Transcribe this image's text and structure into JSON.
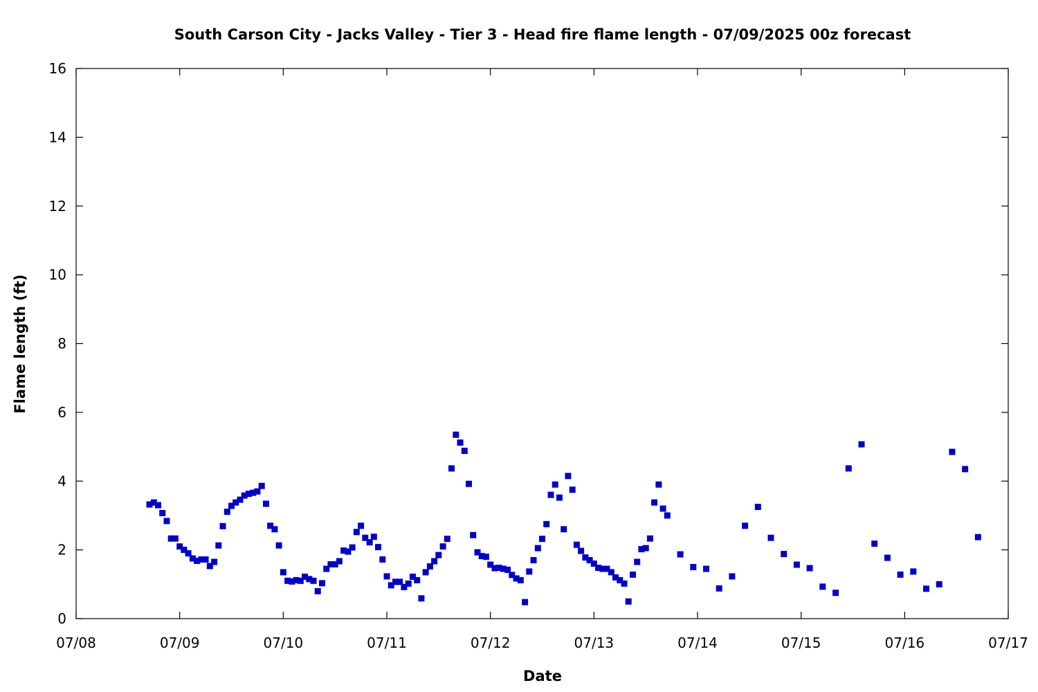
{
  "chart_data": {
    "type": "scatter",
    "title": "South Carson City - Jacks Valley - Tier 3 - Head fire flame length - 07/09/2025 00z forecast",
    "xlabel": "Date",
    "ylabel": "Flame length (ft)",
    "xlim": [
      "07/08 00:00",
      "07/17 00:00"
    ],
    "ylim": [
      0,
      16
    ],
    "x_tick_labels": [
      "07/08",
      "07/09",
      "07/10",
      "07/11",
      "07/12",
      "07/13",
      "07/14",
      "07/15",
      "07/16",
      "07/17"
    ],
    "y_ticks": [
      0,
      2,
      4,
      6,
      8,
      10,
      12,
      14,
      16
    ],
    "grid": false,
    "legend": "none",
    "marker": "square",
    "marker_color": "#0000cc",
    "series": [
      {
        "x": [
          "07/08 17:00",
          "07/08 18:00",
          "07/08 19:00",
          "07/08 20:00",
          "07/08 21:00",
          "07/08 22:00",
          "07/08 23:00",
          "07/09 00:00",
          "07/09 01:00",
          "07/09 02:00",
          "07/09 03:00",
          "07/09 04:00",
          "07/09 05:00",
          "07/09 06:00",
          "07/09 07:00",
          "07/09 08:00",
          "07/09 09:00",
          "07/09 10:00",
          "07/09 11:00",
          "07/09 12:00",
          "07/09 13:00",
          "07/09 14:00",
          "07/09 15:00",
          "07/09 16:00",
          "07/09 17:00",
          "07/09 18:00",
          "07/09 19:00",
          "07/09 20:00",
          "07/09 21:00",
          "07/09 22:00",
          "07/09 23:00",
          "07/10 00:00",
          "07/10 01:00",
          "07/10 02:00",
          "07/10 03:00",
          "07/10 04:00",
          "07/10 05:00",
          "07/10 06:00",
          "07/10 07:00",
          "07/10 08:00",
          "07/10 09:00",
          "07/10 10:00",
          "07/10 11:00",
          "07/10 12:00",
          "07/10 13:00",
          "07/10 14:00",
          "07/10 15:00",
          "07/10 16:00",
          "07/10 17:00",
          "07/10 18:00",
          "07/10 19:00",
          "07/10 20:00",
          "07/10 21:00",
          "07/10 22:00",
          "07/10 23:00",
          "07/11 00:00",
          "07/11 01:00",
          "07/11 02:00",
          "07/11 03:00",
          "07/11 04:00",
          "07/11 05:00",
          "07/11 06:00",
          "07/11 07:00",
          "07/11 08:00",
          "07/11 09:00",
          "07/11 10:00",
          "07/11 11:00",
          "07/11 12:00",
          "07/11 13:00",
          "07/11 14:00",
          "07/11 15:00",
          "07/11 16:00",
          "07/11 17:00",
          "07/11 18:00",
          "07/11 19:00",
          "07/11 20:00",
          "07/11 21:00",
          "07/11 22:00",
          "07/11 23:00",
          "07/12 00:00",
          "07/12 01:00",
          "07/12 02:00",
          "07/12 03:00",
          "07/12 04:00",
          "07/12 05:00",
          "07/12 06:00",
          "07/12 07:00",
          "07/12 08:00",
          "07/12 09:00",
          "07/12 10:00",
          "07/12 11:00",
          "07/12 12:00",
          "07/12 13:00",
          "07/12 14:00",
          "07/12 15:00",
          "07/12 16:00",
          "07/12 17:00",
          "07/12 18:00",
          "07/12 19:00",
          "07/12 20:00",
          "07/12 21:00",
          "07/12 22:00",
          "07/12 23:00",
          "07/13 00:00",
          "07/13 01:00",
          "07/13 02:00",
          "07/13 03:00",
          "07/13 04:00",
          "07/13 05:00",
          "07/13 06:00",
          "07/13 07:00",
          "07/13 08:00",
          "07/13 09:00",
          "07/13 10:00",
          "07/13 11:00",
          "07/13 12:00",
          "07/13 13:00",
          "07/13 14:00",
          "07/13 15:00",
          "07/13 16:00",
          "07/13 17:00",
          "07/13 20:00",
          "07/13 23:00",
          "07/14 02:00",
          "07/14 05:00",
          "07/14 08:00",
          "07/14 11:00",
          "07/14 14:00",
          "07/14 17:00",
          "07/14 20:00",
          "07/14 23:00",
          "07/15 02:00",
          "07/15 05:00",
          "07/15 08:00",
          "07/15 11:00",
          "07/15 14:00",
          "07/15 17:00",
          "07/15 20:00",
          "07/15 23:00",
          "07/16 02:00",
          "07/16 05:00",
          "07/16 08:00",
          "07/16 11:00",
          "07/16 14:00",
          "07/16 17:00"
        ],
        "y": [
          3.32,
          3.38,
          3.3,
          3.07,
          2.84,
          2.33,
          2.33,
          2.1,
          2.0,
          1.9,
          1.75,
          1.68,
          1.72,
          1.72,
          1.53,
          1.65,
          2.13,
          2.69,
          3.11,
          3.28,
          3.38,
          3.46,
          3.58,
          3.63,
          3.66,
          3.7,
          3.86,
          3.34,
          2.7,
          2.6,
          2.13,
          1.35,
          1.1,
          1.08,
          1.12,
          1.1,
          1.22,
          1.15,
          1.1,
          0.8,
          1.03,
          1.45,
          1.58,
          1.58,
          1.67,
          1.98,
          1.95,
          2.07,
          2.52,
          2.7,
          2.35,
          2.22,
          2.38,
          2.08,
          1.72,
          1.23,
          0.97,
          1.07,
          1.07,
          0.92,
          1.02,
          1.22,
          1.12,
          0.59,
          1.35,
          1.52,
          1.67,
          1.85,
          2.1,
          2.32,
          4.37,
          5.35,
          5.12,
          4.88,
          3.92,
          2.43,
          1.93,
          1.82,
          1.8,
          1.57,
          1.47,
          1.48,
          1.45,
          1.42,
          1.27,
          1.17,
          1.12,
          0.48,
          1.37,
          1.7,
          2.05,
          2.32,
          2.75,
          3.6,
          3.9,
          3.52,
          2.6,
          4.15,
          3.75,
          2.15,
          1.97,
          1.78,
          1.7,
          1.6,
          1.48,
          1.45,
          1.45,
          1.35,
          1.2,
          1.12,
          1.02,
          0.5,
          1.28,
          1.65,
          2.02,
          2.05,
          2.33,
          3.38,
          3.9,
          3.2,
          3.0,
          1.87,
          1.5,
          1.45,
          0.88,
          1.23,
          2.7,
          3.25,
          2.35,
          1.88,
          1.57,
          1.47,
          0.93,
          0.75,
          4.37,
          5.07,
          2.18,
          1.77,
          1.28,
          1.37,
          0.87,
          1.0,
          4.85,
          4.35,
          2.37
        ]
      }
    ]
  }
}
